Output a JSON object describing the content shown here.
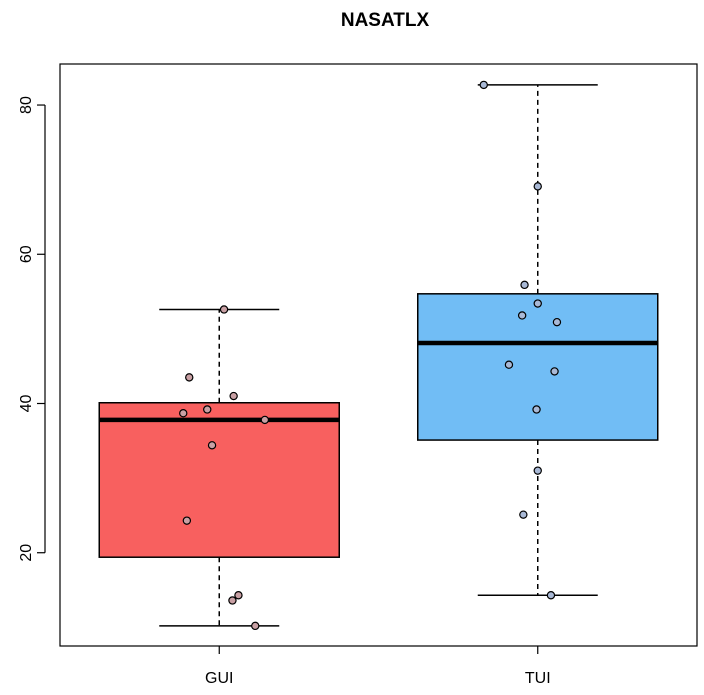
{
  "chart_data": {
    "type": "box",
    "title": "NASATLX",
    "xlabel": "",
    "ylabel": "",
    "categories": [
      "GUI",
      "TUI"
    ],
    "ylim": [
      7.5,
      85.5
    ],
    "yticks": [
      20,
      40,
      60,
      80
    ],
    "grid": false,
    "boxes": [
      {
        "name": "GUI",
        "color": "#f8605f",
        "whisker_low": 10.2,
        "q1": 19.4,
        "median": 37.8,
        "q3": 40.1,
        "whisker_high": 52.6,
        "points": [
          {
            "jitter": -0.25,
            "y": 43.5
          },
          {
            "jitter": 0.12,
            "y": 41.0
          },
          {
            "jitter": -0.3,
            "y": 38.7
          },
          {
            "jitter": -0.1,
            "y": 39.2
          },
          {
            "jitter": 0.38,
            "y": 37.8
          },
          {
            "jitter": -0.06,
            "y": 34.4
          },
          {
            "jitter": -0.27,
            "y": 24.3
          },
          {
            "jitter": 0.16,
            "y": 14.3
          },
          {
            "jitter": 0.11,
            "y": 13.6
          },
          {
            "jitter": 0.3,
            "y": 10.2
          },
          {
            "jitter": 0.04,
            "y": 52.6
          }
        ]
      },
      {
        "name": "TUI",
        "color": "#71bdf5",
        "whisker_low": 14.3,
        "q1": 35.1,
        "median": 48.1,
        "q3": 54.7,
        "whisker_high": 82.7,
        "points": [
          {
            "jitter": -0.45,
            "y": 82.7
          },
          {
            "jitter": 0.0,
            "y": 69.1
          },
          {
            "jitter": -0.11,
            "y": 55.9
          },
          {
            "jitter": 0.0,
            "y": 53.4
          },
          {
            "jitter": -0.13,
            "y": 51.8
          },
          {
            "jitter": 0.16,
            "y": 50.9
          },
          {
            "jitter": -0.24,
            "y": 45.2
          },
          {
            "jitter": 0.14,
            "y": 44.3
          },
          {
            "jitter": -0.01,
            "y": 39.2
          },
          {
            "jitter": 0.0,
            "y": 31.0
          },
          {
            "jitter": -0.12,
            "y": 25.1
          },
          {
            "jitter": 0.11,
            "y": 14.3
          }
        ]
      }
    ]
  }
}
